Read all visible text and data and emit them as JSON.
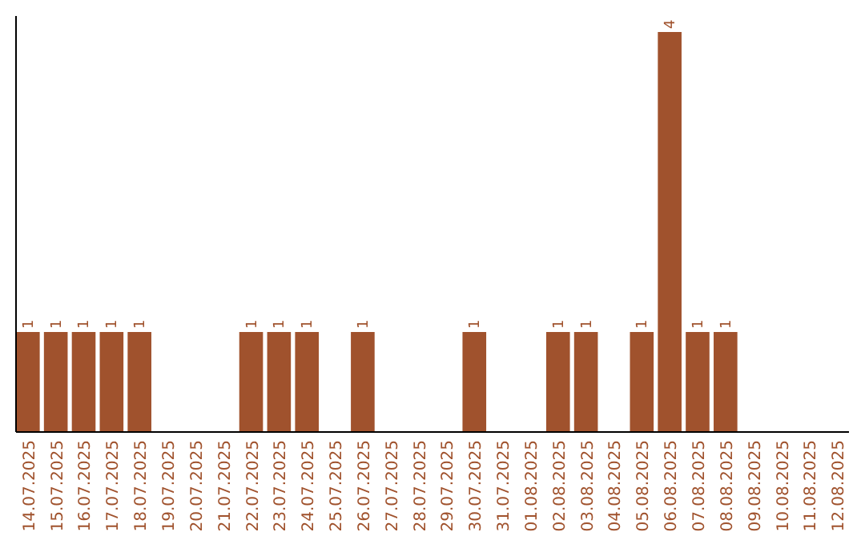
{
  "chart_data": {
    "type": "bar",
    "categories": [
      "14.07.2025",
      "15.07.2025",
      "16.07.2025",
      "17.07.2025",
      "18.07.2025",
      "19.07.2025",
      "20.07.2025",
      "21.07.2025",
      "22.07.2025",
      "23.07.2025",
      "24.07.2025",
      "25.07.2025",
      "26.07.2025",
      "27.07.2025",
      "28.07.2025",
      "29.07.2025",
      "30.07.2025",
      "31.07.2025",
      "01.08.2025",
      "02.08.2025",
      "03.08.2025",
      "04.08.2025",
      "05.08.2025",
      "06.08.2025",
      "07.08.2025",
      "08.08.2025",
      "09.08.2025",
      "10.08.2025",
      "11.08.2025",
      "12.08.2025"
    ],
    "values": [
      1,
      1,
      1,
      1,
      1,
      0,
      0,
      0,
      1,
      1,
      1,
      0,
      1,
      0,
      0,
      0,
      1,
      0,
      0,
      1,
      1,
      0,
      1,
      4,
      1,
      1,
      0,
      0,
      0,
      0
    ],
    "value_labels": [
      "1",
      "1",
      "1",
      "1",
      "1",
      null,
      null,
      null,
      "1",
      "1",
      "1",
      null,
      "1",
      null,
      null,
      null,
      "1",
      null,
      null,
      "1",
      "1",
      null,
      "1",
      "4",
      "1",
      "1",
      null,
      null,
      null,
      null
    ],
    "color": "#a0522d"
  }
}
